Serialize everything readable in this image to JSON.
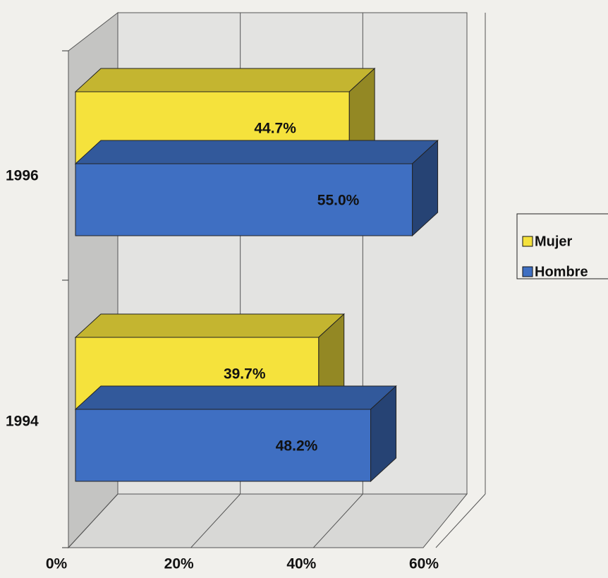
{
  "chart_data": {
    "type": "bar3d_horizontal",
    "categories": [
      "1996",
      "1994"
    ],
    "series": [
      {
        "name": "Mujer",
        "color": "#f5e23c",
        "values": [
          44.7,
          39.7
        ],
        "value_labels": [
          "44.7%",
          "39.7%"
        ]
      },
      {
        "name": "Hombre",
        "color": "#3f6fc2",
        "values": [
          55.0,
          48.2
        ],
        "value_labels": [
          "55.0%",
          "48.2%"
        ]
      }
    ],
    "xlim": [
      0,
      60
    ],
    "xticks": [
      {
        "value": 0,
        "label": "0%"
      },
      {
        "value": 20,
        "label": "20%"
      },
      {
        "value": 40,
        "label": "40%"
      },
      {
        "value": 60,
        "label": "60%"
      }
    ],
    "grid": true,
    "legend": "right"
  }
}
